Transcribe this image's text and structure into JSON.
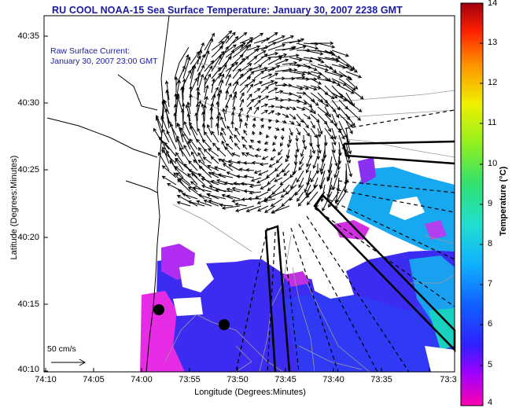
{
  "title": "RU COOL  NOAA-15  Sea Surface Temperature:  January 30, 2007 2238 GMT",
  "annotation": {
    "line1": "Raw Surface Current:",
    "line2": "January 30, 2007 23:00 GMT"
  },
  "scale_label": "50 cm/s",
  "axes": {
    "x_title": "Longitude (Degrees:Minutes)",
    "y_title": "Latitude (Degrees:Minutes)",
    "x_ticks": [
      "74:10",
      "74:05",
      "74:00",
      "73:55",
      "73:50",
      "73:45",
      "73:40",
      "73:35",
      "73:3"
    ],
    "y_ticks": [
      "40:35",
      "40:30",
      "40:25",
      "40:20",
      "40:15",
      "40:10"
    ]
  },
  "colorbar": {
    "title": "Temperature (°C)",
    "ticks": [
      "14",
      "13",
      "12",
      "11",
      "10",
      "9",
      "8",
      "7",
      "6",
      "5",
      "4"
    ],
    "min": 4,
    "max": 14
  },
  "colors": {
    "title_text": "#1a1aa0",
    "sst_cold": "#3a2cf0",
    "sst_mid": "#1ab4f0",
    "sst_warm_edge": "#f020e0"
  }
}
